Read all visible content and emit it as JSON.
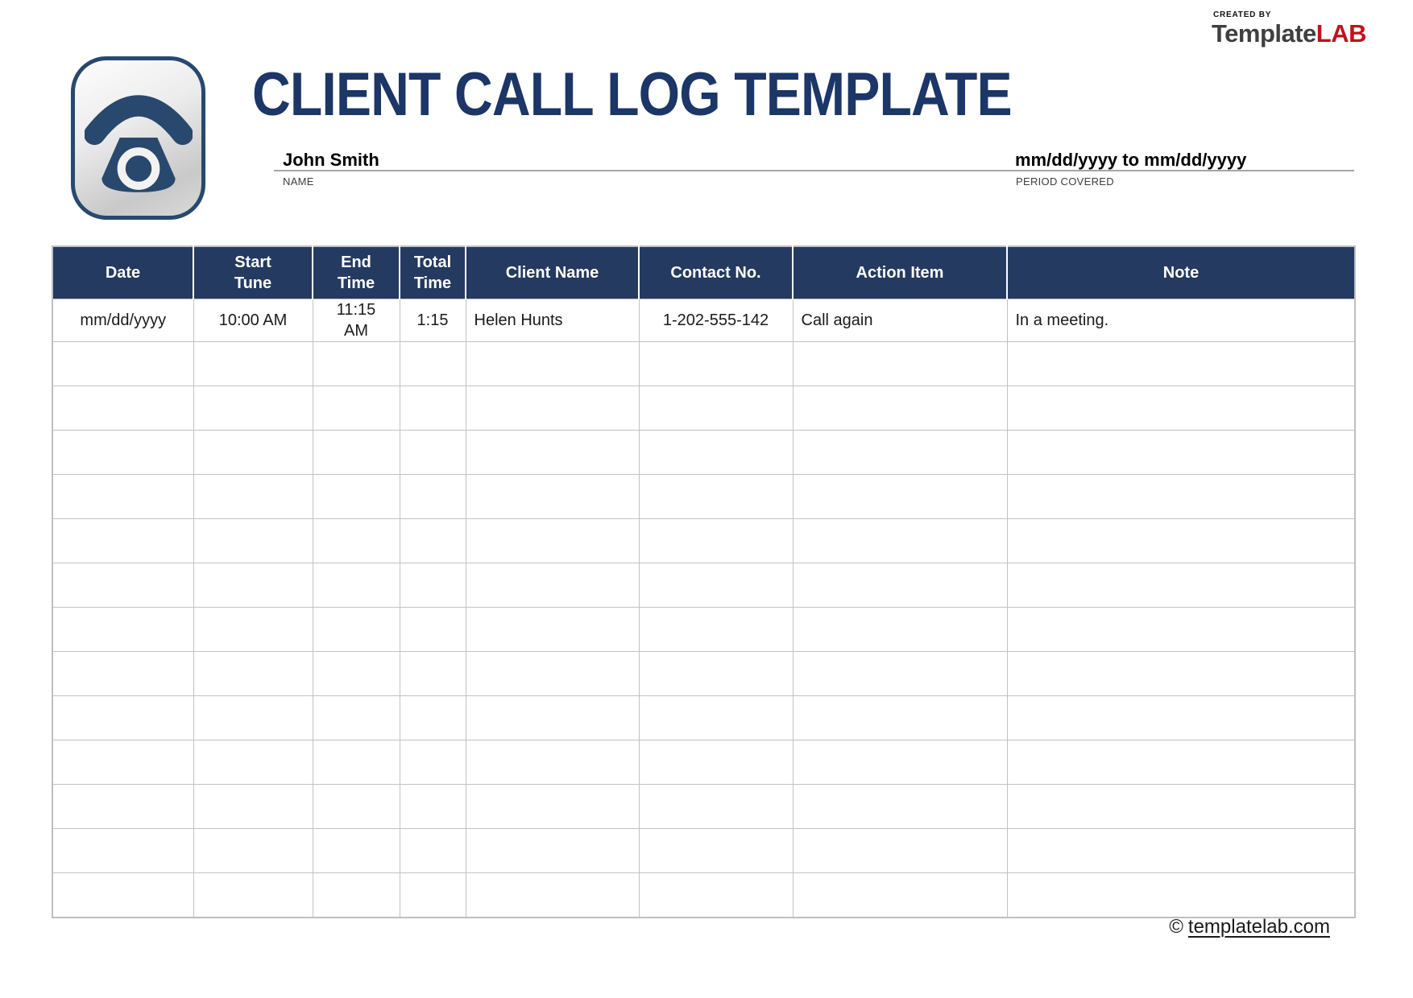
{
  "logo": {
    "created_by": "CREATED BY",
    "brand_template": "Template",
    "brand_lab": "LAB"
  },
  "header": {
    "title": "CLIENT CALL LOG TEMPLATE",
    "name_value": "John Smith",
    "name_label": "NAME",
    "period_value": "mm/dd/yyyy to mm/dd/yyyy",
    "period_label": "PERIOD COVERED"
  },
  "icons": {
    "phone_icon": "classic-telephone-in-rounded-square"
  },
  "table": {
    "columns": [
      {
        "label": "Date",
        "lines": [
          "Date"
        ]
      },
      {
        "label": "Start Tune",
        "lines": [
          "Start",
          "Tune"
        ]
      },
      {
        "label": "End Time",
        "lines": [
          "End",
          "Time"
        ]
      },
      {
        "label": "Total Time",
        "lines": [
          "Total",
          "Time"
        ]
      },
      {
        "label": "Client Name",
        "lines": [
          "Client Name"
        ]
      },
      {
        "label": "Contact No.",
        "lines": [
          "Contact No."
        ]
      },
      {
        "label": "Action Item",
        "lines": [
          "Action Item"
        ]
      },
      {
        "label": "Note",
        "lines": [
          "Note"
        ]
      }
    ],
    "rows": [
      [
        "mm/dd/yyyy",
        "10:00 AM",
        "11:15 AM",
        "1:15",
        "Helen Hunts",
        "1-202-555-142",
        "Call again",
        "In a meeting."
      ]
    ],
    "empty_row_count": 13
  },
  "footer": {
    "copyright_symbol": "©",
    "link_text": "templatelab.com"
  },
  "colors": {
    "navy_title": "#1B3667",
    "header_bg": "#253A60",
    "brand_red": "#C1121C",
    "grid_gray": "#BFBFBF",
    "rule_gray": "#A6A6A6"
  }
}
